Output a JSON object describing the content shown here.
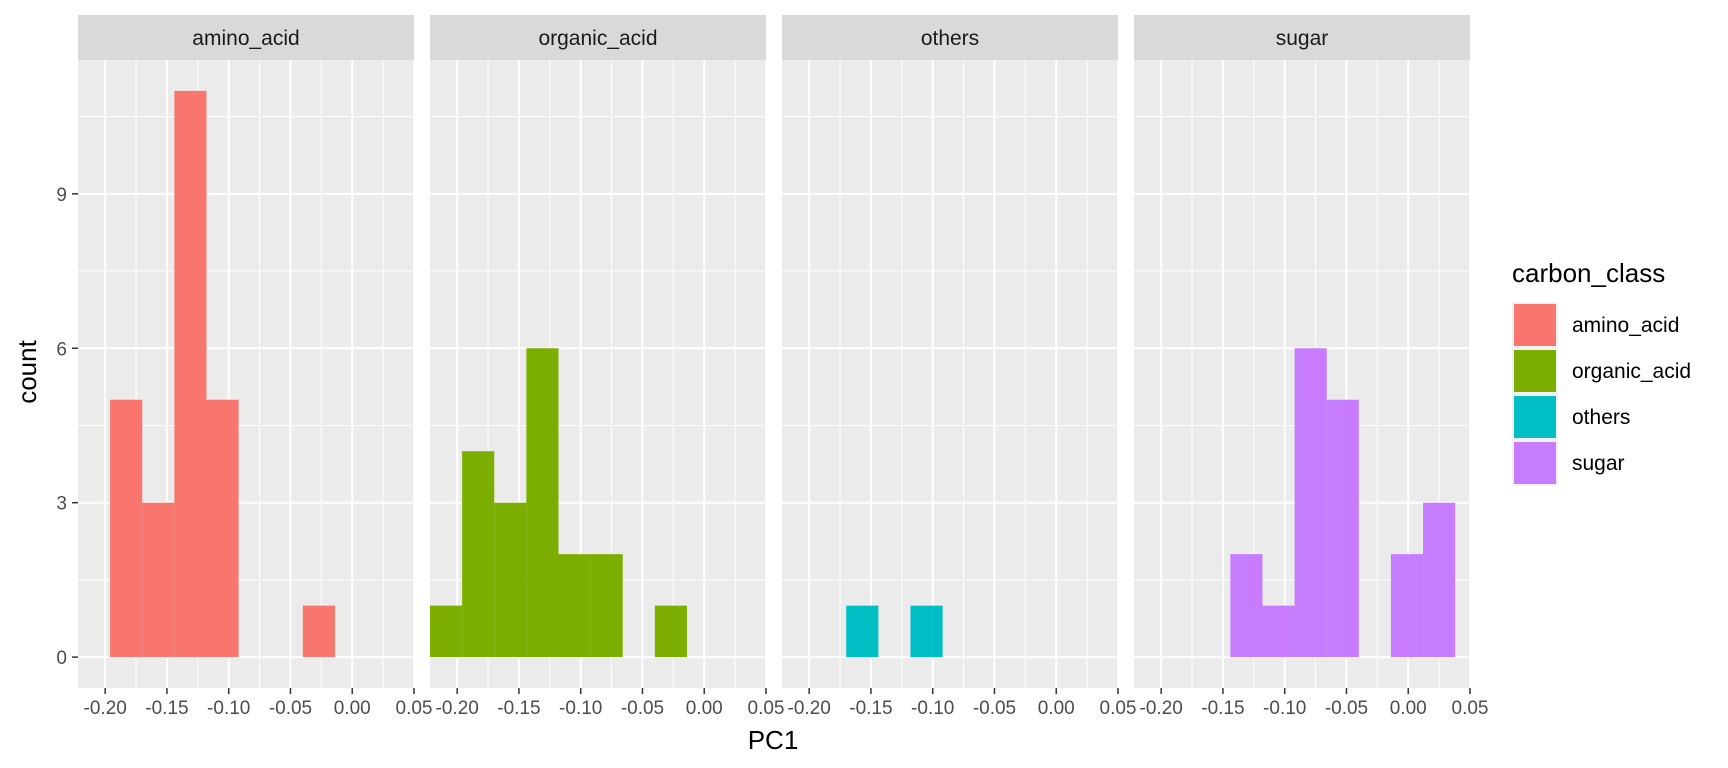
{
  "chart_data": {
    "type": "bar",
    "subtype": "faceted-histogram",
    "xlabel": "PC1",
    "ylabel": "count",
    "xlim": [
      -0.222,
      0.05
    ],
    "ylim": [
      -0.6,
      11.6
    ],
    "x_ticks": [
      -0.2,
      -0.15,
      -0.1,
      -0.05,
      0.0,
      0.05
    ],
    "x_tick_labels": [
      "-0.20",
      "-0.15",
      "-0.10",
      "-0.05",
      "0.00",
      "0.05"
    ],
    "y_ticks": [
      0,
      3,
      6,
      9
    ],
    "y_tick_labels": [
      "0",
      "3",
      "6",
      "9"
    ],
    "grid": true,
    "legend": {
      "title": "carbon_class",
      "position": "right",
      "entries": [
        "amino_acid",
        "organic_acid",
        "others",
        "sugar"
      ]
    },
    "facets": [
      {
        "name": "amino_acid",
        "color": "#F8766D",
        "bins": [
          {
            "x0": -0.196,
            "x1": -0.17,
            "count": 5
          },
          {
            "x0": -0.17,
            "x1": -0.144,
            "count": 3
          },
          {
            "x0": -0.144,
            "x1": -0.118,
            "count": 11
          },
          {
            "x0": -0.118,
            "x1": -0.092,
            "count": 5
          },
          {
            "x0": -0.04,
            "x1": -0.014,
            "count": 1
          }
        ]
      },
      {
        "name": "organic_acid",
        "color": "#7CAE00",
        "bins": [
          {
            "x0": -0.222,
            "x1": -0.196,
            "count": 1
          },
          {
            "x0": -0.196,
            "x1": -0.17,
            "count": 4
          },
          {
            "x0": -0.17,
            "x1": -0.144,
            "count": 3
          },
          {
            "x0": -0.144,
            "x1": -0.118,
            "count": 6
          },
          {
            "x0": -0.118,
            "x1": -0.092,
            "count": 2
          },
          {
            "x0": -0.092,
            "x1": -0.066,
            "count": 2
          },
          {
            "x0": -0.04,
            "x1": -0.014,
            "count": 1
          }
        ]
      },
      {
        "name": "others",
        "color": "#00BFC4",
        "bins": [
          {
            "x0": -0.17,
            "x1": -0.144,
            "count": 1
          },
          {
            "x0": -0.118,
            "x1": -0.092,
            "count": 1
          }
        ]
      },
      {
        "name": "sugar",
        "color": "#C77CFF",
        "bins": [
          {
            "x0": -0.144,
            "x1": -0.118,
            "count": 2
          },
          {
            "x0": -0.118,
            "x1": -0.092,
            "count": 1
          },
          {
            "x0": -0.092,
            "x1": -0.066,
            "count": 6
          },
          {
            "x0": -0.066,
            "x1": -0.04,
            "count": 5
          },
          {
            "x0": -0.014,
            "x1": 0.012,
            "count": 2
          },
          {
            "x0": 0.012,
            "x1": 0.038,
            "count": 3
          }
        ]
      }
    ]
  }
}
